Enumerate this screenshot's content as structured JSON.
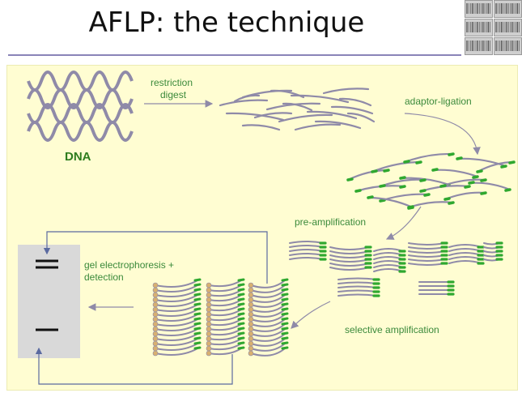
{
  "title": "AFLP: the technique",
  "labels": {
    "dna": "DNA",
    "restriction_line1": "restriction",
    "restriction_line2": "digest",
    "adaptor": "adaptor-ligation",
    "pre_amp": "pre-amplification",
    "selective": "selective amplification",
    "gel_line1": "gel electrophoresis +",
    "gel_line2": "detection"
  },
  "colors": {
    "text_green": "#3b8a3b",
    "dna_green": "#2e7d1e",
    "strand": "#8f8aa8",
    "adaptor_tip": "#2fa82f",
    "panel": "#fffdd2",
    "gel": "#d9d9d9",
    "rule": "#8a84b8"
  },
  "icons": [
    "barcode-thumbnail-icon"
  ]
}
